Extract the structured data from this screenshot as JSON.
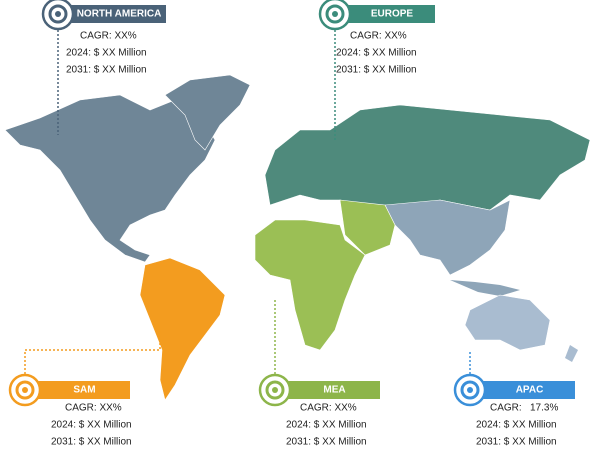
{
  "regions": [
    {
      "name": "NORTH AMERICA",
      "cagr": "CAGR: XX%",
      "y2024": "2024: $ XX Million",
      "y2031": "2031: $ XX Million"
    },
    {
      "name": "EUROPE",
      "cagr": "CAGR: XX%",
      "y2024": "2024: $ XX Million",
      "y2031": "2031: $ XX Million"
    },
    {
      "name": "SAM",
      "cagr": "CAGR: XX%",
      "y2024": "2024: $ XX Million",
      "y2031": "2031: $ XX Million"
    },
    {
      "name": "MEA",
      "cagr": "CAGR: XX%",
      "y2024": "2024: $ XX Million",
      "y2031": "2031: $ XX Million"
    },
    {
      "name": "APAC",
      "cagr": "CAGR:",
      "cagr_value": "17.3%",
      "y2024": "2024: $ XX Million",
      "y2031": "2031: $ XX Million"
    }
  ]
}
